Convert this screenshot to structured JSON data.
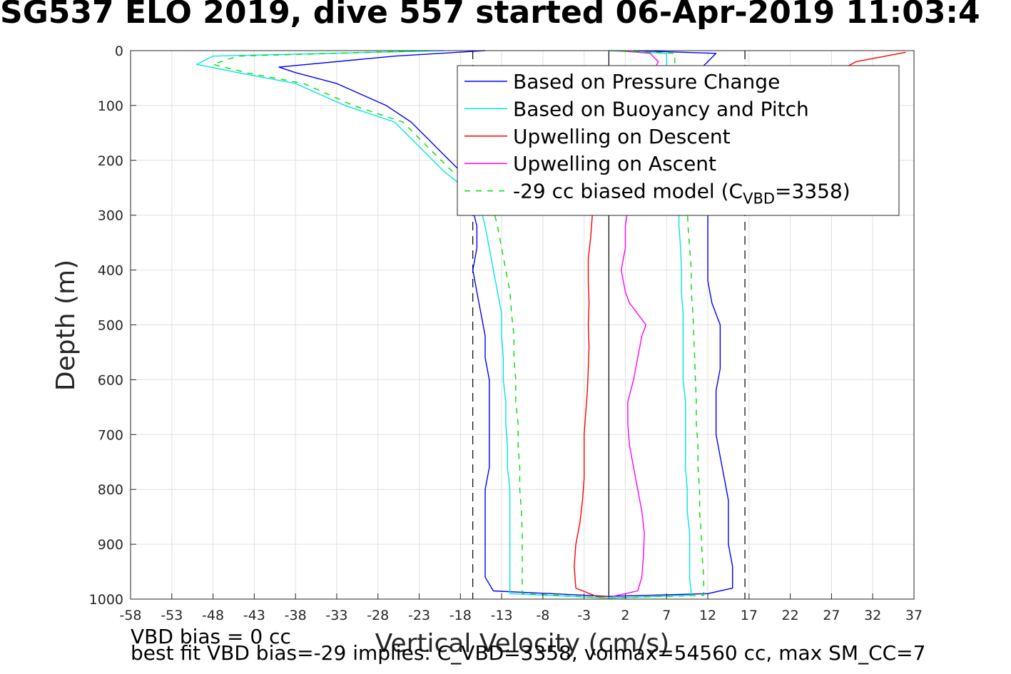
{
  "header": {
    "title": "SG537 ELO 2019, dive 557 started 06-Apr-2019 11:03:4"
  },
  "notes": {
    "vbd_bias": "VBD bias = 0 cc",
    "best_fit": "best fit VBD bias=-29 implies: C_VBD=3358, volmax=54560 cc, max SM_CC=7"
  },
  "chart_data": {
    "type": "line",
    "title": "SG537 ELO 2019, dive 557 started 06-Apr-2019 11:03:4",
    "xlabel": "Vertical Velocity (cm/s)",
    "ylabel": "Depth (m)",
    "xlim": [
      -58,
      37
    ],
    "ylim": [
      1000,
      0
    ],
    "y_reversed": true,
    "grid": true,
    "legend_position": "top-right",
    "xticks": [
      -58,
      -53,
      -48,
      -43,
      -38,
      -33,
      -28,
      -23,
      -18,
      -13,
      -8,
      -3,
      2,
      7,
      12,
      17,
      22,
      27,
      32,
      37
    ],
    "yticks": [
      0,
      100,
      200,
      300,
      400,
      500,
      600,
      700,
      800,
      900,
      1000
    ],
    "xtick_labels": [
      "-58",
      "-53",
      "-48",
      "-43",
      "-38",
      "-33",
      "-28",
      "-23",
      "-18",
      "-13",
      "-8",
      "-3",
      "2",
      "7",
      "12",
      "17",
      "22",
      "27",
      "32",
      "37"
    ],
    "ytick_labels": [
      "0",
      "100",
      "200",
      "300",
      "400",
      "500",
      "600",
      "700",
      "800",
      "900",
      "1000"
    ],
    "reference_lines": [
      {
        "x": -16.5,
        "style": "dashed",
        "color": "#000000"
      },
      {
        "x": 16.5,
        "style": "dashed",
        "color": "#000000"
      },
      {
        "x": 0,
        "style": "solid",
        "color": "#000000"
      }
    ],
    "series": [
      {
        "name": "Based on Pressure Change",
        "color": "#0000ff",
        "dash": "",
        "points": [
          [
            -15,
            0
          ],
          [
            -26,
            10
          ],
          [
            -40,
            30
          ],
          [
            -38,
            40
          ],
          [
            -33,
            60
          ],
          [
            -30,
            80
          ],
          [
            -27,
            100
          ],
          [
            -24,
            130
          ],
          [
            -22,
            160
          ],
          [
            -20,
            190
          ],
          [
            -18,
            220
          ],
          [
            -17,
            250
          ],
          [
            -16.5,
            290
          ],
          [
            -16,
            320
          ],
          [
            -16,
            360
          ],
          [
            -16.5,
            400
          ],
          [
            -16,
            440
          ],
          [
            -15.5,
            480
          ],
          [
            -15,
            520
          ],
          [
            -15,
            560
          ],
          [
            -14.5,
            600
          ],
          [
            -14.5,
            640
          ],
          [
            -14.5,
            680
          ],
          [
            -14.5,
            720
          ],
          [
            -14.5,
            760
          ],
          [
            -15,
            800
          ],
          [
            -15,
            840
          ],
          [
            -15,
            880
          ],
          [
            -15,
            920
          ],
          [
            -15,
            960
          ],
          [
            -14,
            985
          ],
          [
            0,
            995
          ],
          [
            12,
            990
          ],
          [
            15,
            980
          ],
          [
            15,
            940
          ],
          [
            14.5,
            900
          ],
          [
            14.5,
            860
          ],
          [
            14.5,
            820
          ],
          [
            14,
            780
          ],
          [
            13.5,
            740
          ],
          [
            13,
            700
          ],
          [
            13,
            660
          ],
          [
            13,
            620
          ],
          [
            13.5,
            580
          ],
          [
            13.5,
            540
          ],
          [
            13.5,
            500
          ],
          [
            12.5,
            460
          ],
          [
            12,
            420
          ],
          [
            12,
            380
          ],
          [
            12,
            340
          ],
          [
            12,
            300
          ],
          [
            12,
            250
          ],
          [
            11,
            200
          ],
          [
            10,
            150
          ],
          [
            11,
            100
          ],
          [
            10,
            50
          ],
          [
            12,
            20
          ],
          [
            13,
            5
          ],
          [
            3,
            0
          ]
        ]
      },
      {
        "name": "Based on Buoyancy and Pitch",
        "color": "#00e5e5",
        "dash": "",
        "points": [
          [
            -20,
            0
          ],
          [
            -48,
            10
          ],
          [
            -50,
            25
          ],
          [
            -45,
            40
          ],
          [
            -38,
            60
          ],
          [
            -35,
            80
          ],
          [
            -32,
            100
          ],
          [
            -26,
            130
          ],
          [
            -24,
            160
          ],
          [
            -22,
            190
          ],
          [
            -20,
            220
          ],
          [
            -17.5,
            250
          ],
          [
            -15.5,
            290
          ],
          [
            -15,
            320
          ],
          [
            -14.5,
            360
          ],
          [
            -14,
            400
          ],
          [
            -13.5,
            440
          ],
          [
            -13,
            480
          ],
          [
            -13,
            520
          ],
          [
            -12.8,
            560
          ],
          [
            -12.8,
            600
          ],
          [
            -12.5,
            640
          ],
          [
            -12.5,
            680
          ],
          [
            -12.3,
            720
          ],
          [
            -12.3,
            760
          ],
          [
            -12,
            800
          ],
          [
            -12,
            840
          ],
          [
            -12,
            880
          ],
          [
            -12,
            920
          ],
          [
            -12,
            960
          ],
          [
            -12,
            990
          ],
          [
            0,
            998
          ],
          [
            10,
            993
          ],
          [
            9.8,
            960
          ],
          [
            9.8,
            920
          ],
          [
            9.8,
            880
          ],
          [
            9.5,
            840
          ],
          [
            9.5,
            800
          ],
          [
            9.3,
            760
          ],
          [
            9.3,
            720
          ],
          [
            9.3,
            680
          ],
          [
            9.3,
            640
          ],
          [
            9,
            600
          ],
          [
            9,
            560
          ],
          [
            9,
            520
          ],
          [
            9,
            480
          ],
          [
            8.8,
            440
          ],
          [
            8.8,
            400
          ],
          [
            8.7,
            360
          ],
          [
            8.5,
            320
          ],
          [
            8.5,
            280
          ],
          [
            8.5,
            240
          ],
          [
            8,
            200
          ],
          [
            8,
            150
          ],
          [
            8,
            100
          ],
          [
            7,
            50
          ],
          [
            7,
            20
          ],
          [
            7,
            5
          ],
          [
            0,
            0
          ]
        ]
      },
      {
        "name": "Upwelling on Descent",
        "color": "#ff0000",
        "dash": "",
        "points": [
          [
            -2,
            300
          ],
          [
            -2.2,
            340
          ],
          [
            -2.5,
            380
          ],
          [
            -2.5,
            420
          ],
          [
            -2.4,
            460
          ],
          [
            -2.5,
            500
          ],
          [
            -2.4,
            540
          ],
          [
            -2.5,
            580
          ],
          [
            -2.6,
            620
          ],
          [
            -2.8,
            660
          ],
          [
            -3,
            700
          ],
          [
            -3,
            740
          ],
          [
            -3,
            780
          ],
          [
            -3.2,
            820
          ],
          [
            -3.5,
            860
          ],
          [
            -4,
            900
          ],
          [
            -4.2,
            940
          ],
          [
            -4,
            980
          ],
          [
            -1.5,
            995
          ],
          [
            0,
            995
          ]
        ]
      },
      {
        "name": "Upwelling on Ascent",
        "color": "#ff00ff",
        "dash": "",
        "points": [
          [
            0.5,
            995
          ],
          [
            3.5,
            985
          ],
          [
            4,
            960
          ],
          [
            4.2,
            920
          ],
          [
            4.3,
            880
          ],
          [
            4,
            840
          ],
          [
            3.5,
            800
          ],
          [
            3,
            760
          ],
          [
            2.5,
            720
          ],
          [
            2.3,
            680
          ],
          [
            2.3,
            640
          ],
          [
            3,
            600
          ],
          [
            3.5,
            560
          ],
          [
            4,
            520
          ],
          [
            4.5,
            500
          ],
          [
            3.5,
            480
          ],
          [
            2.5,
            460
          ],
          [
            2,
            440
          ],
          [
            1.5,
            400
          ],
          [
            2,
            360
          ],
          [
            2,
            320
          ],
          [
            2.2,
            300
          ],
          [
            3,
            250
          ],
          [
            4,
            200
          ],
          [
            5,
            150
          ],
          [
            4,
            100
          ],
          [
            5,
            50
          ],
          [
            6,
            20
          ],
          [
            5,
            5
          ],
          [
            1,
            0
          ]
        ]
      },
      {
        "name": "-29 cc biased model (C_VBD=3358)",
        "color": "#00dd00",
        "dash": "8,8",
        "points": [
          [
            -22,
            0
          ],
          [
            -45,
            10
          ],
          [
            -48,
            25
          ],
          [
            -44,
            40
          ],
          [
            -37,
            60
          ],
          [
            -34,
            80
          ],
          [
            -31,
            100
          ],
          [
            -25,
            130
          ],
          [
            -23,
            160
          ],
          [
            -21,
            190
          ],
          [
            -19,
            220
          ],
          [
            -16,
            250
          ],
          [
            -14,
            290
          ],
          [
            -13.5,
            320
          ],
          [
            -13,
            360
          ],
          [
            -12.5,
            400
          ],
          [
            -12,
            440
          ],
          [
            -11.8,
            480
          ],
          [
            -11.5,
            520
          ],
          [
            -11.5,
            560
          ],
          [
            -11.3,
            600
          ],
          [
            -11.3,
            640
          ],
          [
            -11,
            680
          ],
          [
            -11,
            720
          ],
          [
            -10.8,
            760
          ],
          [
            -10.8,
            800
          ],
          [
            -10.6,
            840
          ],
          [
            -10.5,
            880
          ],
          [
            -10.5,
            920
          ],
          [
            -10.5,
            960
          ],
          [
            -10.5,
            990
          ],
          [
            0,
            998
          ],
          [
            11.5,
            993
          ],
          [
            11.5,
            960
          ],
          [
            11.3,
            920
          ],
          [
            11.2,
            880
          ],
          [
            11,
            840
          ],
          [
            11,
            800
          ],
          [
            10.8,
            760
          ],
          [
            10.8,
            720
          ],
          [
            10.6,
            680
          ],
          [
            10.6,
            640
          ],
          [
            10.5,
            600
          ],
          [
            10.4,
            560
          ],
          [
            10.3,
            520
          ],
          [
            10.2,
            480
          ],
          [
            10,
            440
          ],
          [
            10,
            400
          ],
          [
            9.8,
            360
          ],
          [
            9.6,
            320
          ],
          [
            9.5,
            280
          ],
          [
            9.5,
            240
          ],
          [
            9,
            200
          ],
          [
            9,
            150
          ],
          [
            9,
            100
          ],
          [
            8,
            50
          ],
          [
            8,
            20
          ],
          [
            8,
            5
          ],
          [
            0,
            0
          ]
        ]
      },
      {
        "name": "",
        "color": "#ff0000",
        "dash": "",
        "points": [
          [
            0,
            300
          ],
          [
            2,
            295
          ],
          [
            6,
            280
          ],
          [
            10,
            250
          ],
          [
            14,
            200
          ],
          [
            18,
            150
          ],
          [
            22,
            100
          ],
          [
            25,
            60
          ],
          [
            30,
            20
          ],
          [
            36,
            3
          ]
        ]
      }
    ],
    "legend": {
      "entries": [
        {
          "label": "Based on Pressure Change",
          "color": "#0000ff",
          "dash": ""
        },
        {
          "label": "Based on Buoyancy and Pitch",
          "color": "#00e5e5",
          "dash": ""
        },
        {
          "label": "Upwelling on Descent",
          "color": "#ff0000",
          "dash": ""
        },
        {
          "label": "Upwelling on Ascent",
          "color": "#ff00ff",
          "dash": ""
        },
        {
          "label_prefix": "-29 cc biased model (C",
          "label_sub": "VBD",
          "label_suffix": "=3358)",
          "color": "#00dd00",
          "dash": "8,8"
        }
      ]
    }
  }
}
